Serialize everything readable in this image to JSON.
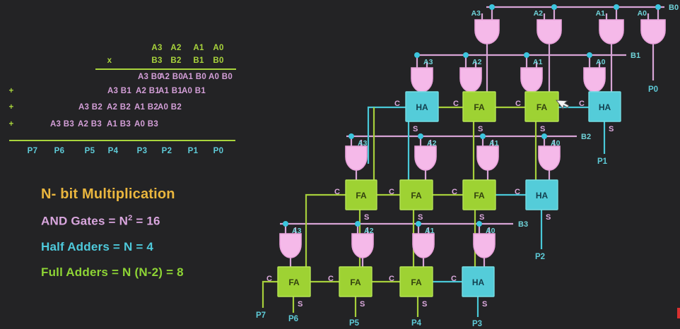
{
  "worksheet": {
    "multiplicand_row": [
      "A3",
      "A2",
      "A1",
      "A0"
    ],
    "multiply_sign": "x",
    "multiplier_row": [
      "B3",
      "B2",
      "B1",
      "B0"
    ],
    "plus_sign": "+",
    "partial_product_rows": [
      [
        "A3 B0",
        "A2 B0",
        "A1 B0",
        "A0 B0"
      ],
      [
        "A3 B1",
        "A2 B1",
        "A1 B1",
        "A0 B1"
      ],
      [
        "A3 B2",
        "A2 B2",
        "A1 B2",
        "A0 B2"
      ],
      [
        "A3 B3",
        "A2 B3",
        "A1 B3",
        "A0 B3"
      ]
    ],
    "product_row": [
      "P7",
      "P6",
      "P5",
      "P4",
      "P3",
      "P2",
      "P1",
      "P0"
    ]
  },
  "info": {
    "title": "N- bit Multiplication",
    "and_gates_prefix": "AND Gates = N",
    "and_gates_sup": "2",
    "and_gates_suffix": " = 16",
    "half_adders": "Half Adders = N = 4",
    "full_adders": "Full Adders = N (N-2) = 8"
  },
  "circuit": {
    "bus_labels": [
      "B0",
      "B1",
      "B2",
      "B3"
    ],
    "and_gate_rows": [
      [
        "A3",
        "A2",
        "A1",
        "A0"
      ],
      [
        "A3",
        "A2",
        "A1",
        "A0"
      ],
      [
        "A3",
        "A2",
        "A1",
        "A0"
      ],
      [
        "A3",
        "A2",
        "A1",
        "A0"
      ]
    ],
    "adder_rows": [
      [
        "HA",
        "FA",
        "FA",
        "HA"
      ],
      [
        "FA",
        "FA",
        "FA",
        "HA"
      ],
      [
        "FA",
        "FA",
        "FA",
        "HA"
      ]
    ],
    "carry_label": "C",
    "sum_label": "S",
    "outputs": [
      "P0",
      "P1",
      "P2",
      "P3",
      "P4",
      "P5",
      "P6",
      "P7"
    ]
  },
  "colors": {
    "background": "#232325",
    "and_gate_fill": "#f5b9e9",
    "and_gate_stroke": "#e9a3dc",
    "ha_fill": "#54ccd9",
    "ha_stroke": "#74dde4",
    "ha_text": "#123f4e",
    "fa_fill": "#9ed233",
    "fa_stroke": "#b5e455",
    "fa_text": "#33420f",
    "wire_pink": "#d7a4d6",
    "wire_green": "#a6cf3b",
    "wire_cyan": "#49c8d8",
    "dot_cyan": "#3cc5de",
    "label_cyan": "#6fd2d8",
    "label_pink": "#ddaade",
    "ws_green": "#a9d43c",
    "ws_pink": "#d49fd8",
    "ws_cyan": "#5ecbd8",
    "title_gold": "#eab63e",
    "and_text_pink": "#d9a6de",
    "half_text_cyan": "#4ec9db",
    "full_text_green": "#8ed435",
    "red_mark": "#d93030"
  }
}
